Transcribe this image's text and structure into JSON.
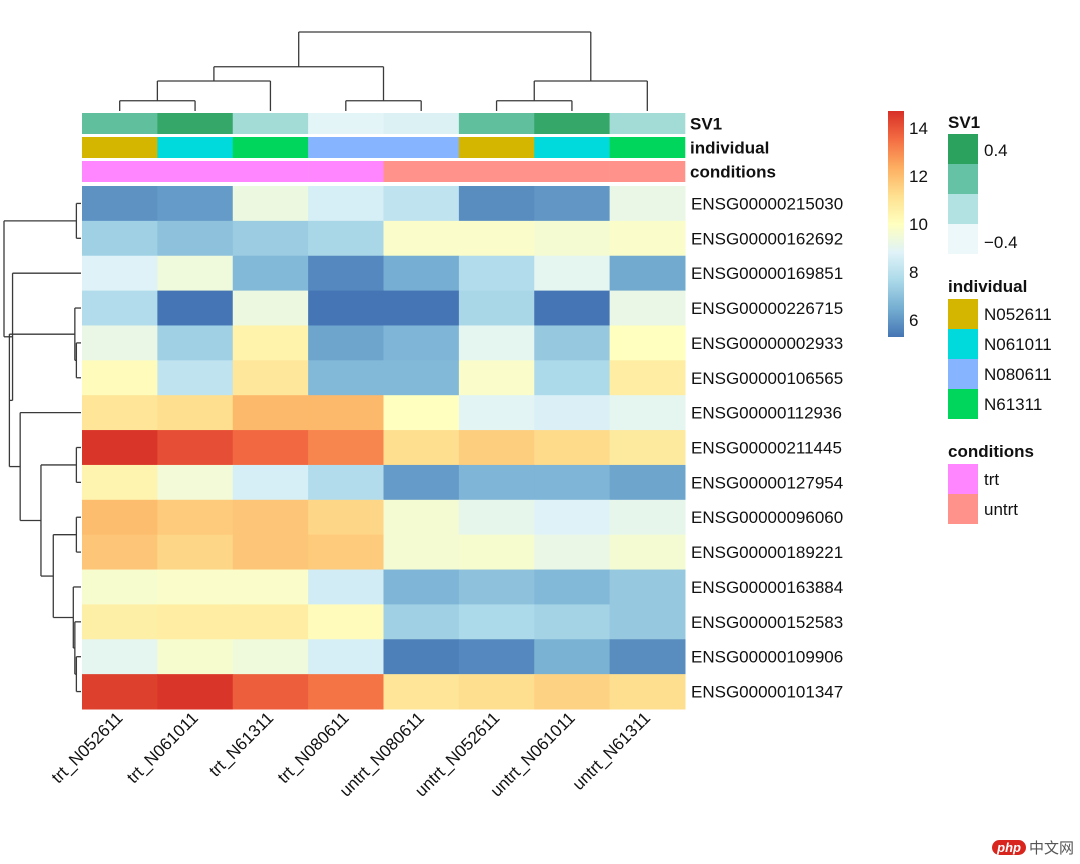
{
  "chart_data": {
    "type": "heatmap",
    "title": "",
    "columns": [
      "trt_N052611",
      "trt_N061011",
      "trt_N61311",
      "trt_N080611",
      "untrt_N080611",
      "untrt_N052611",
      "untrt_N061011",
      "untrt_N61311"
    ],
    "rows": [
      "ENSG00000215030",
      "ENSG00000162692",
      "ENSG00000169851",
      "ENSG00000226715",
      "ENSG00000002933",
      "ENSG00000106565",
      "ENSG00000112936",
      "ENSG00000211445",
      "ENSG00000127954",
      "ENSG00000096060",
      "ENSG00000189221",
      "ENSG00000163884",
      "ENSG00000152583",
      "ENSG00000109906",
      "ENSG00000101347"
    ],
    "values": [
      [
        5.9,
        6.1,
        9.3,
        8.6,
        8.1,
        5.8,
        6.0,
        9.2
      ],
      [
        7.4,
        7.0,
        7.3,
        7.6,
        9.8,
        9.8,
        9.6,
        9.8
      ],
      [
        8.8,
        9.4,
        6.8,
        5.7,
        6.5,
        7.8,
        9.0,
        6.4
      ],
      [
        7.8,
        5.2,
        9.3,
        5.1,
        5.1,
        7.6,
        5.3,
        9.2
      ],
      [
        9.2,
        7.4,
        10.5,
        6.3,
        6.7,
        9.0,
        7.2,
        10.0
      ],
      [
        10.1,
        8.1,
        10.9,
        6.8,
        6.8,
        9.8,
        7.7,
        10.7
      ],
      [
        11.0,
        11.2,
        12.1,
        12.1,
        10.0,
        8.9,
        8.7,
        9.0
      ],
      [
        14.6,
        14.1,
        13.6,
        13.1,
        11.2,
        11.6,
        11.3,
        10.8
      ],
      [
        10.4,
        9.5,
        8.6,
        7.8,
        6.1,
        6.7,
        6.7,
        6.3
      ],
      [
        12.0,
        11.7,
        11.8,
        11.4,
        9.6,
        9.1,
        8.8,
        9.1
      ],
      [
        11.8,
        11.4,
        11.8,
        11.7,
        9.6,
        9.7,
        9.2,
        9.6
      ],
      [
        9.7,
        9.8,
        9.8,
        8.5,
        6.7,
        7.0,
        6.8,
        7.2
      ],
      [
        10.6,
        10.7,
        10.7,
        10.1,
        7.4,
        7.7,
        7.5,
        7.2
      ],
      [
        9.0,
        9.7,
        9.4,
        8.6,
        5.5,
        5.7,
        6.6,
        5.8
      ],
      [
        14.4,
        14.6,
        13.8,
        13.4,
        11.0,
        11.2,
        11.5,
        11.2
      ]
    ],
    "color_scale": {
      "min": 5.3,
      "max": 14.7,
      "ticks": [
        6,
        8,
        10,
        12,
        14
      ],
      "palette": [
        "#4575b4",
        "#74add1",
        "#abd9e9",
        "#e0f3f8",
        "#ffffbf",
        "#fee090",
        "#fdae61",
        "#f46d43",
        "#d73027"
      ]
    },
    "annotations": [
      {
        "name": "SV1",
        "type": "continuous",
        "values": [
          0.2,
          0.45,
          -0.1,
          -0.45,
          -0.4,
          0.2,
          0.45,
          -0.1
        ],
        "legend_ticks": [
          "0.4",
          "−0.4"
        ],
        "legend_colors": [
          "#2ca25f",
          "#66c2a4",
          "#b2e2e2",
          "#edf8fb"
        ]
      },
      {
        "name": "individual",
        "type": "categorical",
        "values": [
          "N052611",
          "N061011",
          "N61311",
          "N080611",
          "N080611",
          "N052611",
          "N061011",
          "N61311"
        ],
        "levels": [
          "N052611",
          "N061011",
          "N080611",
          "N61311"
        ],
        "colors": {
          "N052611": "#d4b600",
          "N061011": "#00dadc",
          "N080611": "#86b4ff",
          "N61311": "#00d65c"
        }
      },
      {
        "name": "conditions",
        "type": "categorical",
        "values": [
          "trt",
          "trt",
          "trt",
          "trt",
          "untrt",
          "untrt",
          "untrt",
          "untrt"
        ],
        "levels": [
          "trt",
          "untrt"
        ],
        "colors": {
          "trt": "#ff86ff",
          "untrt": "#ff928a"
        }
      }
    ],
    "col_dendrogram": "((((trt_N052611,trt_N061011),trt_N61311),(trt_N080611,untrt_N080611)),((untrt_N052611,untrt_N061011),untrt_N61311))",
    "row_dendrogram": "((ENSG00000215030,ENSG00000162692),(ENSG00000169851,((ENSG00000226715,(ENSG00000002933,ENSG00000106565)),(ENSG00000112936,((ENSG00000211445,ENSG00000127954),((ENSG00000096060,ENSG00000189221),(ENSG00000163884,(ENSG00000152583,(ENSG00000109906,ENSG00000101347)))))))))",
    "legend_placement": "right",
    "grid": false
  },
  "watermark": {
    "logo": "php",
    "text": "中文网"
  }
}
